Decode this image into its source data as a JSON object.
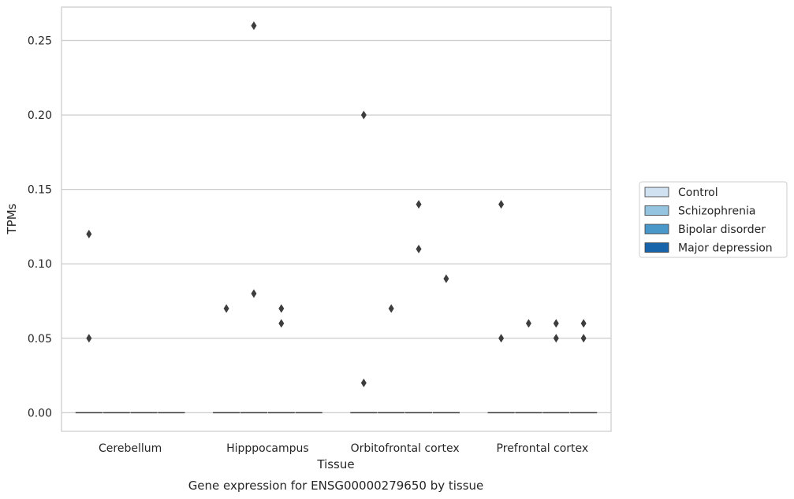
{
  "chart_data": {
    "type": "box",
    "xlabel": "Tissue",
    "ylabel": "TPMs",
    "caption": "Gene expression for ENSG00000279650 by tissue",
    "categories": [
      "Cerebellum",
      "Hipppocampus",
      "Orbitofrontal cortex",
      "Prefrontal cortex"
    ],
    "ylim": [
      -0.0125,
      0.2725
    ],
    "yticks": [
      0.0,
      0.05,
      0.1,
      0.15,
      0.2,
      0.25
    ],
    "ytick_labels": [
      "0.00",
      "0.05",
      "0.10",
      "0.15",
      "0.20",
      "0.25"
    ],
    "grid": true,
    "legend_position": "right",
    "series": [
      {
        "name": "Control",
        "color": "#d0e1f2",
        "median": [
          0,
          0,
          0,
          0
        ],
        "outliers": [
          [
            0.12,
            0.05
          ],
          [
            0.07
          ],
          [
            0.2,
            0.02
          ],
          [
            0.14,
            0.05
          ]
        ]
      },
      {
        "name": "Schizophrenia",
        "color": "#94c4df",
        "median": [
          0,
          0,
          0,
          0
        ],
        "outliers": [
          [],
          [
            0.26,
            0.08
          ],
          [
            0.07
          ],
          [
            0.06
          ]
        ]
      },
      {
        "name": "Bipolar disorder",
        "color": "#4a98c9",
        "median": [
          0,
          0,
          0,
          0
        ],
        "outliers": [
          [],
          [
            0.07,
            0.06
          ],
          [
            0.14,
            0.11
          ],
          [
            0.06,
            0.05
          ]
        ]
      },
      {
        "name": "Major depression",
        "color": "#1764ab",
        "median": [
          0,
          0,
          0,
          0
        ],
        "outliers": [
          [],
          [],
          [
            0.09
          ],
          [
            0.06,
            0.05
          ]
        ]
      }
    ]
  }
}
